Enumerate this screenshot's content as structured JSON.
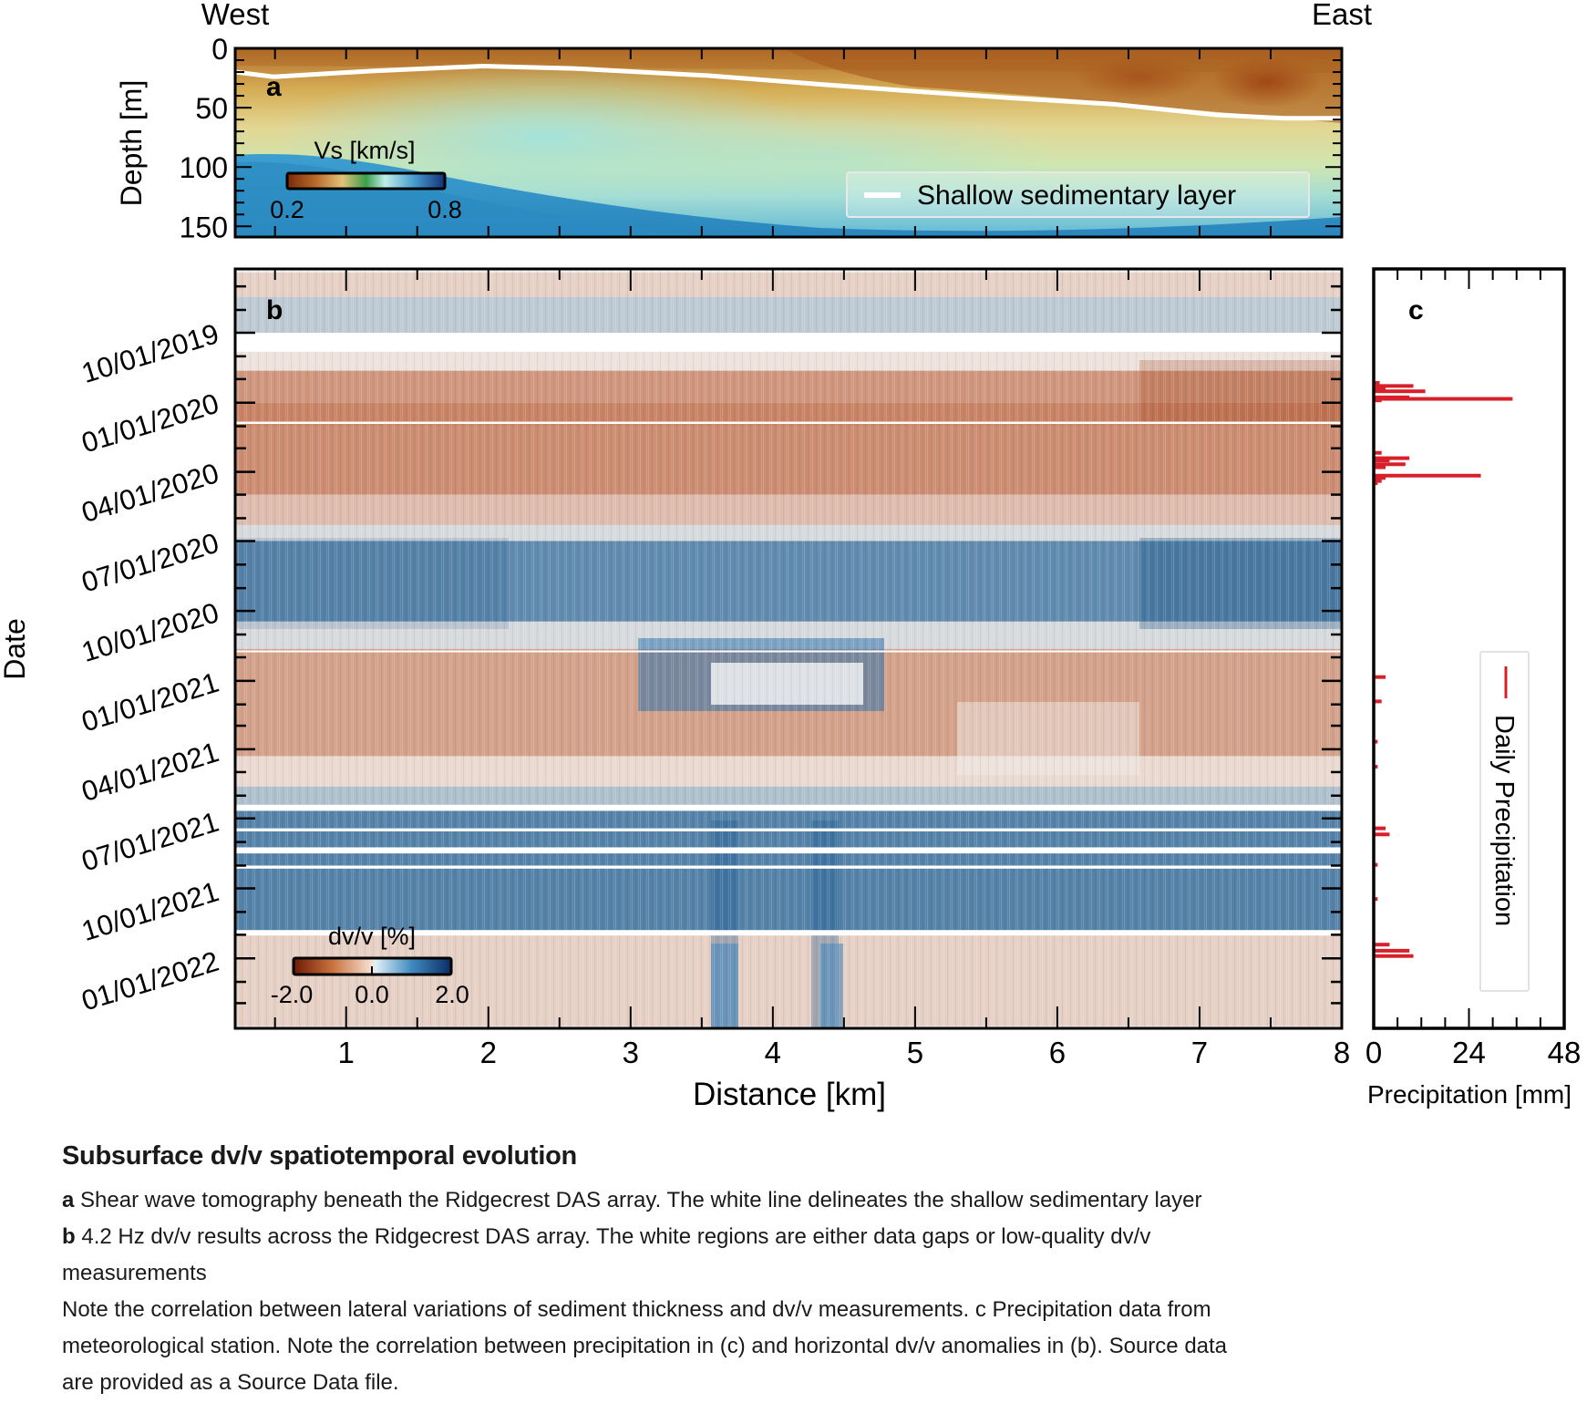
{
  "figure": {
    "direction_left": "West",
    "direction_right": "East"
  },
  "chart_data": [
    {
      "panel": "a",
      "type": "heatmap",
      "panel_label": "a",
      "title": "",
      "xlabel": "",
      "ylabel": "Depth [m]",
      "xlim": [
        0.22,
        8.0
      ],
      "ylim": [
        159,
        0
      ],
      "y_ticks": [
        "0",
        "50",
        "100",
        "150"
      ],
      "y_tick_values": [
        0,
        50,
        100,
        150
      ],
      "colorbar": {
        "label": "Vs [km/s]",
        "min_label": "0.2",
        "max_label": "0.8",
        "range": [
          0.2,
          0.8
        ]
      },
      "colors": {
        "slow": "#8a3a0e",
        "mid_low": "#d4a64a",
        "mid": "#e4dd9a",
        "mid_high": "#a9e0d2",
        "fast": "#2e8fc0",
        "deep": "#174f8f"
      },
      "legend": {
        "position": "lower-right",
        "entries": [
          {
            "label": "Shallow sedimentary layer",
            "color": "#ffffff"
          }
        ]
      },
      "sediment_layer": {
        "x_km": [
          0.22,
          0.49,
          1.2,
          1.96,
          2.6,
          3.54,
          4.3,
          4.97,
          5.7,
          6.39,
          7.11,
          7.6,
          8.0
        ],
        "depth_m": [
          20,
          24,
          19,
          15,
          17,
          23,
          30,
          36,
          42,
          47,
          56,
          59,
          59
        ]
      }
    },
    {
      "panel": "b",
      "type": "heatmap",
      "panel_label": "b",
      "title": "",
      "xlabel": "Distance [km]",
      "ylabel": "Date",
      "xlim": [
        0.22,
        8.0
      ],
      "x_ticks": [
        "1",
        "2",
        "3",
        "4",
        "5",
        "6",
        "7",
        "8"
      ],
      "x_tick_values": [
        1,
        2,
        3,
        4,
        5,
        6,
        7,
        8
      ],
      "y_ticks": [
        "10/01/2019",
        "01/01/2020",
        "04/01/2020",
        "07/01/2020",
        "10/01/2020",
        "01/01/2021",
        "04/01/2021",
        "07/01/2021",
        "10/01/2021",
        "01/01/2022"
      ],
      "colorbar": {
        "label": "dv/v [%]",
        "tick_labels": [
          "-2.0",
          "0.0",
          "2.0"
        ],
        "range": [
          -2.0,
          2.0
        ]
      },
      "colors": {
        "negative": "#b5532a",
        "neutral": "#f1ece8",
        "positive": "#1f5f93"
      },
      "dvv_bands": [
        {
          "from": "2019-07-14",
          "to": "2019-08-15",
          "dvv": -0.3
        },
        {
          "from": "2019-08-15",
          "to": "2019-10-01",
          "dvv": 0.4
        },
        {
          "from": "2019-10-20",
          "to": "2019-11-20",
          "dvv": -0.1
        },
        {
          "from": "2019-11-20",
          "to": "2020-01-01",
          "dvv": -0.9
        },
        {
          "from": "2020-01-01",
          "to": "2020-02-01",
          "dvv": -1.1
        },
        {
          "from": "2020-02-01",
          "to": "2020-05-01",
          "dvv": -1.0
        },
        {
          "from": "2020-05-01",
          "to": "2020-06-10",
          "dvv": -0.5
        },
        {
          "from": "2020-06-10",
          "to": "2020-07-01",
          "dvv": 0.2
        },
        {
          "from": "2020-07-01",
          "to": "2020-10-15",
          "dvv": 1.1
        },
        {
          "from": "2020-10-15",
          "to": "2020-11-20",
          "dvv": 0.2
        },
        {
          "from": "2020-11-20",
          "to": "2021-04-10",
          "dvv": -0.8
        },
        {
          "from": "2021-04-10",
          "to": "2021-05-20",
          "dvv": -0.2
        },
        {
          "from": "2021-05-20",
          "to": "2021-06-15",
          "dvv": 0.5
        },
        {
          "from": "2021-06-15",
          "to": "2021-11-25",
          "dvv": 1.2
        },
        {
          "from": "2021-11-25",
          "to": "2022-03-31",
          "dvv": -0.3
        }
      ],
      "data_gaps": [
        {
          "from": "2019-10-01",
          "to": "2019-10-26"
        },
        {
          "from": "2020-01-26",
          "to": "2020-01-29"
        },
        {
          "from": "2020-11-22",
          "to": "2020-11-23"
        },
        {
          "from": "2021-06-13",
          "to": "2021-06-21"
        },
        {
          "from": "2021-07-14",
          "to": "2021-07-18"
        },
        {
          "from": "2021-08-08",
          "to": "2021-08-16"
        },
        {
          "from": "2021-09-01",
          "to": "2021-09-05"
        },
        {
          "from": "2021-11-25",
          "to": "2021-12-02"
        }
      ]
    },
    {
      "panel": "c",
      "type": "bar",
      "orientation": "horizontal",
      "panel_label": "c",
      "title": "",
      "xlabel": "Precipitation [mm]",
      "ylabel": "",
      "xlim": [
        0,
        48
      ],
      "x_ticks": [
        "0",
        "24",
        "48"
      ],
      "x_tick_values": [
        0,
        24,
        48
      ],
      "legend": {
        "position": "right",
        "entries": [
          {
            "label": "Daily Precipitation",
            "color": "#d8202a"
          }
        ]
      },
      "series": [
        {
          "name": "Daily Precipitation",
          "color": "#d8202a",
          "dates": [
            "2019-12-06",
            "2019-12-10",
            "2019-12-14",
            "2019-12-17",
            "2019-12-25",
            "2019-12-27",
            "2019-12-29",
            "2020-03-07",
            "2020-03-14",
            "2020-03-17",
            "2020-03-22",
            "2020-03-26",
            "2020-04-06",
            "2020-04-09",
            "2020-04-13",
            "2020-04-16",
            "2020-12-27",
            "2021-01-28",
            "2021-03-22",
            "2021-04-24",
            "2021-07-14",
            "2021-07-22",
            "2021-08-31",
            "2021-10-15",
            "2021-12-14",
            "2021-12-22",
            "2021-12-29"
          ],
          "values": [
            1.5,
            10,
            3,
            13,
            9,
            35,
            2,
            2,
            9,
            4,
            8,
            3,
            27,
            3,
            2,
            1,
            3,
            2,
            1,
            1,
            3,
            4,
            1,
            1,
            4,
            9,
            10
          ]
        }
      ]
    }
  ],
  "caption": {
    "title": "Subsurface dv/v spatiotemporal evolution",
    "a_label": "a",
    "a_text": " Shear wave tomography beneath the Ridgecrest DAS array. The white line delineates the shallow sedimentary layer",
    "b_label": "b",
    "b_text_line1": " 4.2 Hz dv/v results across the Ridgecrest DAS array. The white regions are either data gaps or low-quality dv/v",
    "b_text_line2": "measurements",
    "note_line1": "Note the correlation between lateral variations of sediment thickness and dv/v measurements. c Precipitation data from",
    "note_line2": "meteorological station. Note the correlation between precipitation in (c) and horizontal dv/v anomalies in (b). Source data",
    "note_line3": "are provided as a Source Data file."
  }
}
